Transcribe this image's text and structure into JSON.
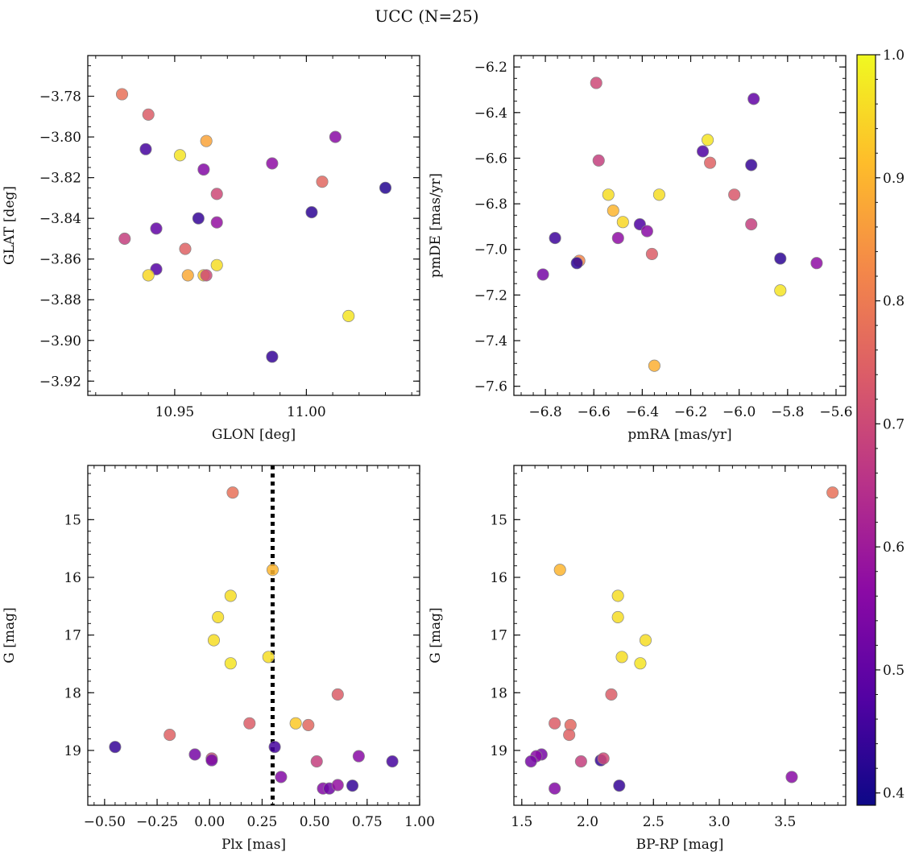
{
  "figure": {
    "title": "UCC (N=25)"
  },
  "colormap": {
    "name": "plasma",
    "vmin": 0.39,
    "vmax": 1.0,
    "ticks": [
      0.4,
      0.5,
      0.6,
      0.7,
      0.8,
      0.9,
      1.0
    ],
    "tick_labels": [
      "0.4",
      "0.5",
      "0.6",
      "0.7",
      "0.8",
      "0.9",
      "1.0"
    ],
    "stops": [
      "#0d0887",
      "#5302a3",
      "#8b0aa5",
      "#b83289",
      "#db5c68",
      "#f48849",
      "#febd2a",
      "#f0f921"
    ],
    "marker_edge": "#888888"
  },
  "chart_data": [
    {
      "type": "scatter",
      "id": "glon-glat",
      "xlabel": "GLON [deg]",
      "ylabel": "GLAT [deg]",
      "xlim": [
        10.917,
        11.043
      ],
      "ylim": [
        -3.927,
        -3.76
      ],
      "xticks": [
        10.95,
        11.0
      ],
      "xtick_labels": [
        "10.95",
        "11.00"
      ],
      "yticks": [
        -3.78,
        -3.8,
        -3.82,
        -3.84,
        -3.86,
        -3.88,
        -3.9,
        -3.92
      ],
      "ytick_labels": [
        "−3.78",
        "−3.80",
        "−3.82",
        "−3.84",
        "−3.86",
        "−3.88",
        "−3.90",
        "−3.92"
      ],
      "x_minor": 0.01,
      "y_minor": 0.005,
      "points": [
        [
          10.93,
          -3.779,
          0.78
        ],
        [
          10.94,
          -3.789,
          0.74
        ],
        [
          10.939,
          -3.806,
          0.46
        ],
        [
          10.952,
          -3.809,
          0.97
        ],
        [
          10.962,
          -3.802,
          0.87
        ],
        [
          10.961,
          -3.816,
          0.55
        ],
        [
          10.966,
          -3.828,
          0.7
        ],
        [
          10.966,
          -3.842,
          0.58
        ],
        [
          10.959,
          -3.84,
          0.44
        ],
        [
          10.943,
          -3.845,
          0.5
        ],
        [
          10.931,
          -3.85,
          0.68
        ],
        [
          10.954,
          -3.855,
          0.75
        ],
        [
          10.943,
          -3.865,
          0.48
        ],
        [
          10.94,
          -3.868,
          0.95
        ],
        [
          10.955,
          -3.868,
          0.88
        ],
        [
          10.961,
          -3.868,
          0.93
        ],
        [
          10.962,
          -3.868,
          0.7
        ],
        [
          10.966,
          -3.863,
          0.96
        ],
        [
          10.987,
          -3.813,
          0.57
        ],
        [
          10.987,
          -3.908,
          0.44
        ],
        [
          11.002,
          -3.837,
          0.43
        ],
        [
          11.006,
          -3.822,
          0.76
        ],
        [
          11.011,
          -3.8,
          0.56
        ],
        [
          11.016,
          -3.888,
          0.97
        ],
        [
          11.03,
          -3.825,
          0.42
        ]
      ]
    },
    {
      "type": "scatter",
      "id": "pmra-pmde",
      "xlabel": "pmRA [mas/yr]",
      "ylabel": "pmDE [mas/yr]",
      "xlim": [
        -6.93,
        -5.56
      ],
      "ylim": [
        -7.64,
        -6.15
      ],
      "xticks": [
        -6.8,
        -6.6,
        -6.4,
        -6.2,
        -6.0,
        -5.8,
        -5.6
      ],
      "xtick_labels": [
        "−6.8",
        "−6.6",
        "−6.4",
        "−6.2",
        "−6.0",
        "−5.8",
        "−5.6"
      ],
      "yticks": [
        -6.2,
        -6.4,
        -6.6,
        -6.8,
        -7.0,
        -7.2,
        -7.4,
        -7.6
      ],
      "ytick_labels": [
        "−6.2",
        "−6.4",
        "−6.6",
        "−6.8",
        "−7.0",
        "−7.2",
        "−7.4",
        "−7.6"
      ],
      "x_minor": 0.05,
      "y_minor": 0.05,
      "points": [
        [
          -6.59,
          -6.27,
          0.7
        ],
        [
          -5.94,
          -6.34,
          0.5
        ],
        [
          -6.58,
          -6.61,
          0.68
        ],
        [
          -6.15,
          -6.57,
          0.47
        ],
        [
          -6.13,
          -6.52,
          0.97
        ],
        [
          -6.12,
          -6.62,
          0.75
        ],
        [
          -5.95,
          -6.63,
          0.44
        ],
        [
          -6.54,
          -6.76,
          0.96
        ],
        [
          -6.33,
          -6.76,
          0.96
        ],
        [
          -6.02,
          -6.76,
          0.73
        ],
        [
          -6.52,
          -6.83,
          0.9
        ],
        [
          -6.48,
          -6.88,
          0.95
        ],
        [
          -6.41,
          -6.89,
          0.47
        ],
        [
          -6.38,
          -6.92,
          0.56
        ],
        [
          -5.95,
          -6.89,
          0.68
        ],
        [
          -6.5,
          -6.95,
          0.57
        ],
        [
          -6.76,
          -6.95,
          0.45
        ],
        [
          -6.36,
          -7.02,
          0.74
        ],
        [
          -6.66,
          -7.05,
          0.82
        ],
        [
          -6.67,
          -7.06,
          0.43
        ],
        [
          -5.83,
          -7.04,
          0.43
        ],
        [
          -5.68,
          -7.06,
          0.57
        ],
        [
          -6.81,
          -7.11,
          0.53
        ],
        [
          -5.83,
          -7.18,
          0.97
        ],
        [
          -6.35,
          -7.51,
          0.89
        ]
      ]
    },
    {
      "type": "scatter",
      "id": "plx-g",
      "xlabel": "Plx [mas]",
      "ylabel": "G [mag]",
      "xlim": [
        -0.58,
        1.0
      ],
      "ylim": [
        19.95,
        14.06
      ],
      "xticks": [
        -0.5,
        -0.25,
        0.0,
        0.25,
        0.5,
        0.75,
        1.0
      ],
      "xtick_labels": [
        "−0.50",
        "−0.25",
        "0.00",
        "0.25",
        "0.50",
        "0.75",
        "1.00"
      ],
      "yticks": [
        15,
        16,
        17,
        18,
        19
      ],
      "ytick_labels": [
        "15",
        "16",
        "17",
        "18",
        "19"
      ],
      "x_minor": 0.05,
      "y_minor": 0.2,
      "vline": {
        "x": 0.3,
        "style": "dotted"
      },
      "points": [
        [
          0.11,
          14.53,
          0.78
        ],
        [
          0.3,
          15.87,
          0.9
        ],
        [
          0.1,
          16.32,
          0.96
        ],
        [
          0.04,
          16.69,
          0.96
        ],
        [
          0.02,
          17.09,
          0.96
        ],
        [
          0.1,
          17.49,
          0.97
        ],
        [
          0.28,
          17.38,
          0.96
        ],
        [
          0.61,
          18.03,
          0.74
        ],
        [
          0.19,
          18.53,
          0.74
        ],
        [
          0.41,
          18.53,
          0.93
        ],
        [
          0.47,
          18.56,
          0.76
        ],
        [
          -0.19,
          18.73,
          0.75
        ],
        [
          -0.45,
          18.94,
          0.44
        ],
        [
          -0.07,
          19.07,
          0.53
        ],
        [
          0.01,
          19.14,
          0.7
        ],
        [
          0.01,
          19.17,
          0.53
        ],
        [
          0.31,
          18.94,
          0.46
        ],
        [
          0.51,
          19.19,
          0.68
        ],
        [
          0.71,
          19.1,
          0.56
        ],
        [
          0.87,
          19.19,
          0.46
        ],
        [
          0.34,
          19.46,
          0.55
        ],
        [
          0.54,
          19.66,
          0.55
        ],
        [
          0.57,
          19.66,
          0.52
        ],
        [
          0.61,
          19.6,
          0.58
        ],
        [
          0.68,
          19.61,
          0.44
        ]
      ]
    },
    {
      "type": "scatter",
      "id": "bprp-g",
      "xlabel": "BP-RP [mag]",
      "ylabel": "G [mag]",
      "xlim": [
        1.44,
        3.96
      ],
      "ylim": [
        19.95,
        14.06
      ],
      "xticks": [
        1.5,
        2.0,
        2.5,
        3.0,
        3.5
      ],
      "xtick_labels": [
        "1.5",
        "2.0",
        "2.5",
        "3.0",
        "3.5"
      ],
      "yticks": [
        15,
        16,
        17,
        18,
        19
      ],
      "ytick_labels": [
        "15",
        "16",
        "17",
        "18",
        "19"
      ],
      "x_minor": 0.1,
      "y_minor": 0.2,
      "points": [
        [
          3.86,
          14.53,
          0.78
        ],
        [
          1.79,
          15.87,
          0.9
        ],
        [
          2.23,
          16.32,
          0.96
        ],
        [
          2.23,
          16.69,
          0.96
        ],
        [
          2.44,
          17.09,
          0.96
        ],
        [
          2.26,
          17.38,
          0.96
        ],
        [
          2.4,
          17.49,
          0.97
        ],
        [
          2.18,
          18.03,
          0.74
        ],
        [
          1.75,
          18.53,
          0.74
        ],
        [
          1.87,
          18.56,
          0.76
        ],
        [
          1.86,
          18.73,
          0.75
        ],
        [
          1.65,
          19.07,
          0.53
        ],
        [
          1.61,
          19.1,
          0.56
        ],
        [
          1.57,
          19.19,
          0.53
        ],
        [
          1.95,
          19.19,
          0.68
        ],
        [
          2.1,
          19.17,
          0.44
        ],
        [
          2.12,
          19.14,
          0.7
        ],
        [
          2.24,
          19.61,
          0.44
        ],
        [
          1.75,
          19.66,
          0.55
        ],
        [
          3.55,
          19.46,
          0.56
        ]
      ]
    }
  ]
}
